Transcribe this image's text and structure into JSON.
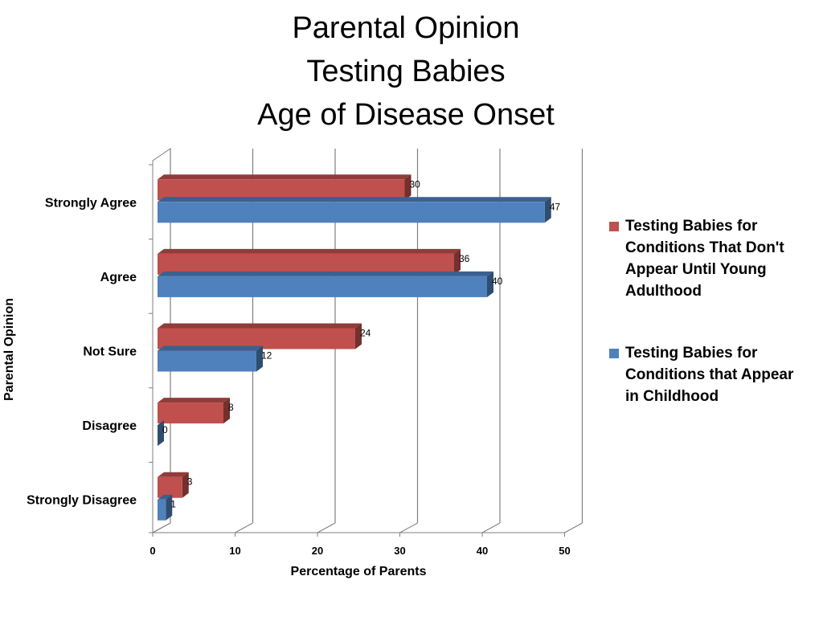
{
  "chart_data": {
    "type": "bar",
    "orientation": "horizontal",
    "title_lines": [
      "Parental Opinion",
      "Testing Babies",
      "Age of Disease Onset"
    ],
    "categories": [
      "Strongly Agree",
      "Agree",
      "Not Sure",
      "Disagree",
      "Strongly Disagree"
    ],
    "series": [
      {
        "name": "Testing Babies for Conditions That Don't Appear Until Young Adulthood",
        "color": "#c0504d",
        "values": [
          30,
          36,
          24,
          8,
          3
        ]
      },
      {
        "name": "Testing Babies for Conditions that Appear in Childhood",
        "color": "#4f81bd",
        "values": [
          47,
          40,
          12,
          0,
          1
        ]
      }
    ],
    "xlabel": "Percentage of Parents",
    "ylabel": "Parental Opinion",
    "xlim": [
      0,
      50
    ],
    "xticks": [
      0,
      10,
      20,
      30,
      40,
      50
    ],
    "grid": true,
    "legend_position": "right"
  }
}
